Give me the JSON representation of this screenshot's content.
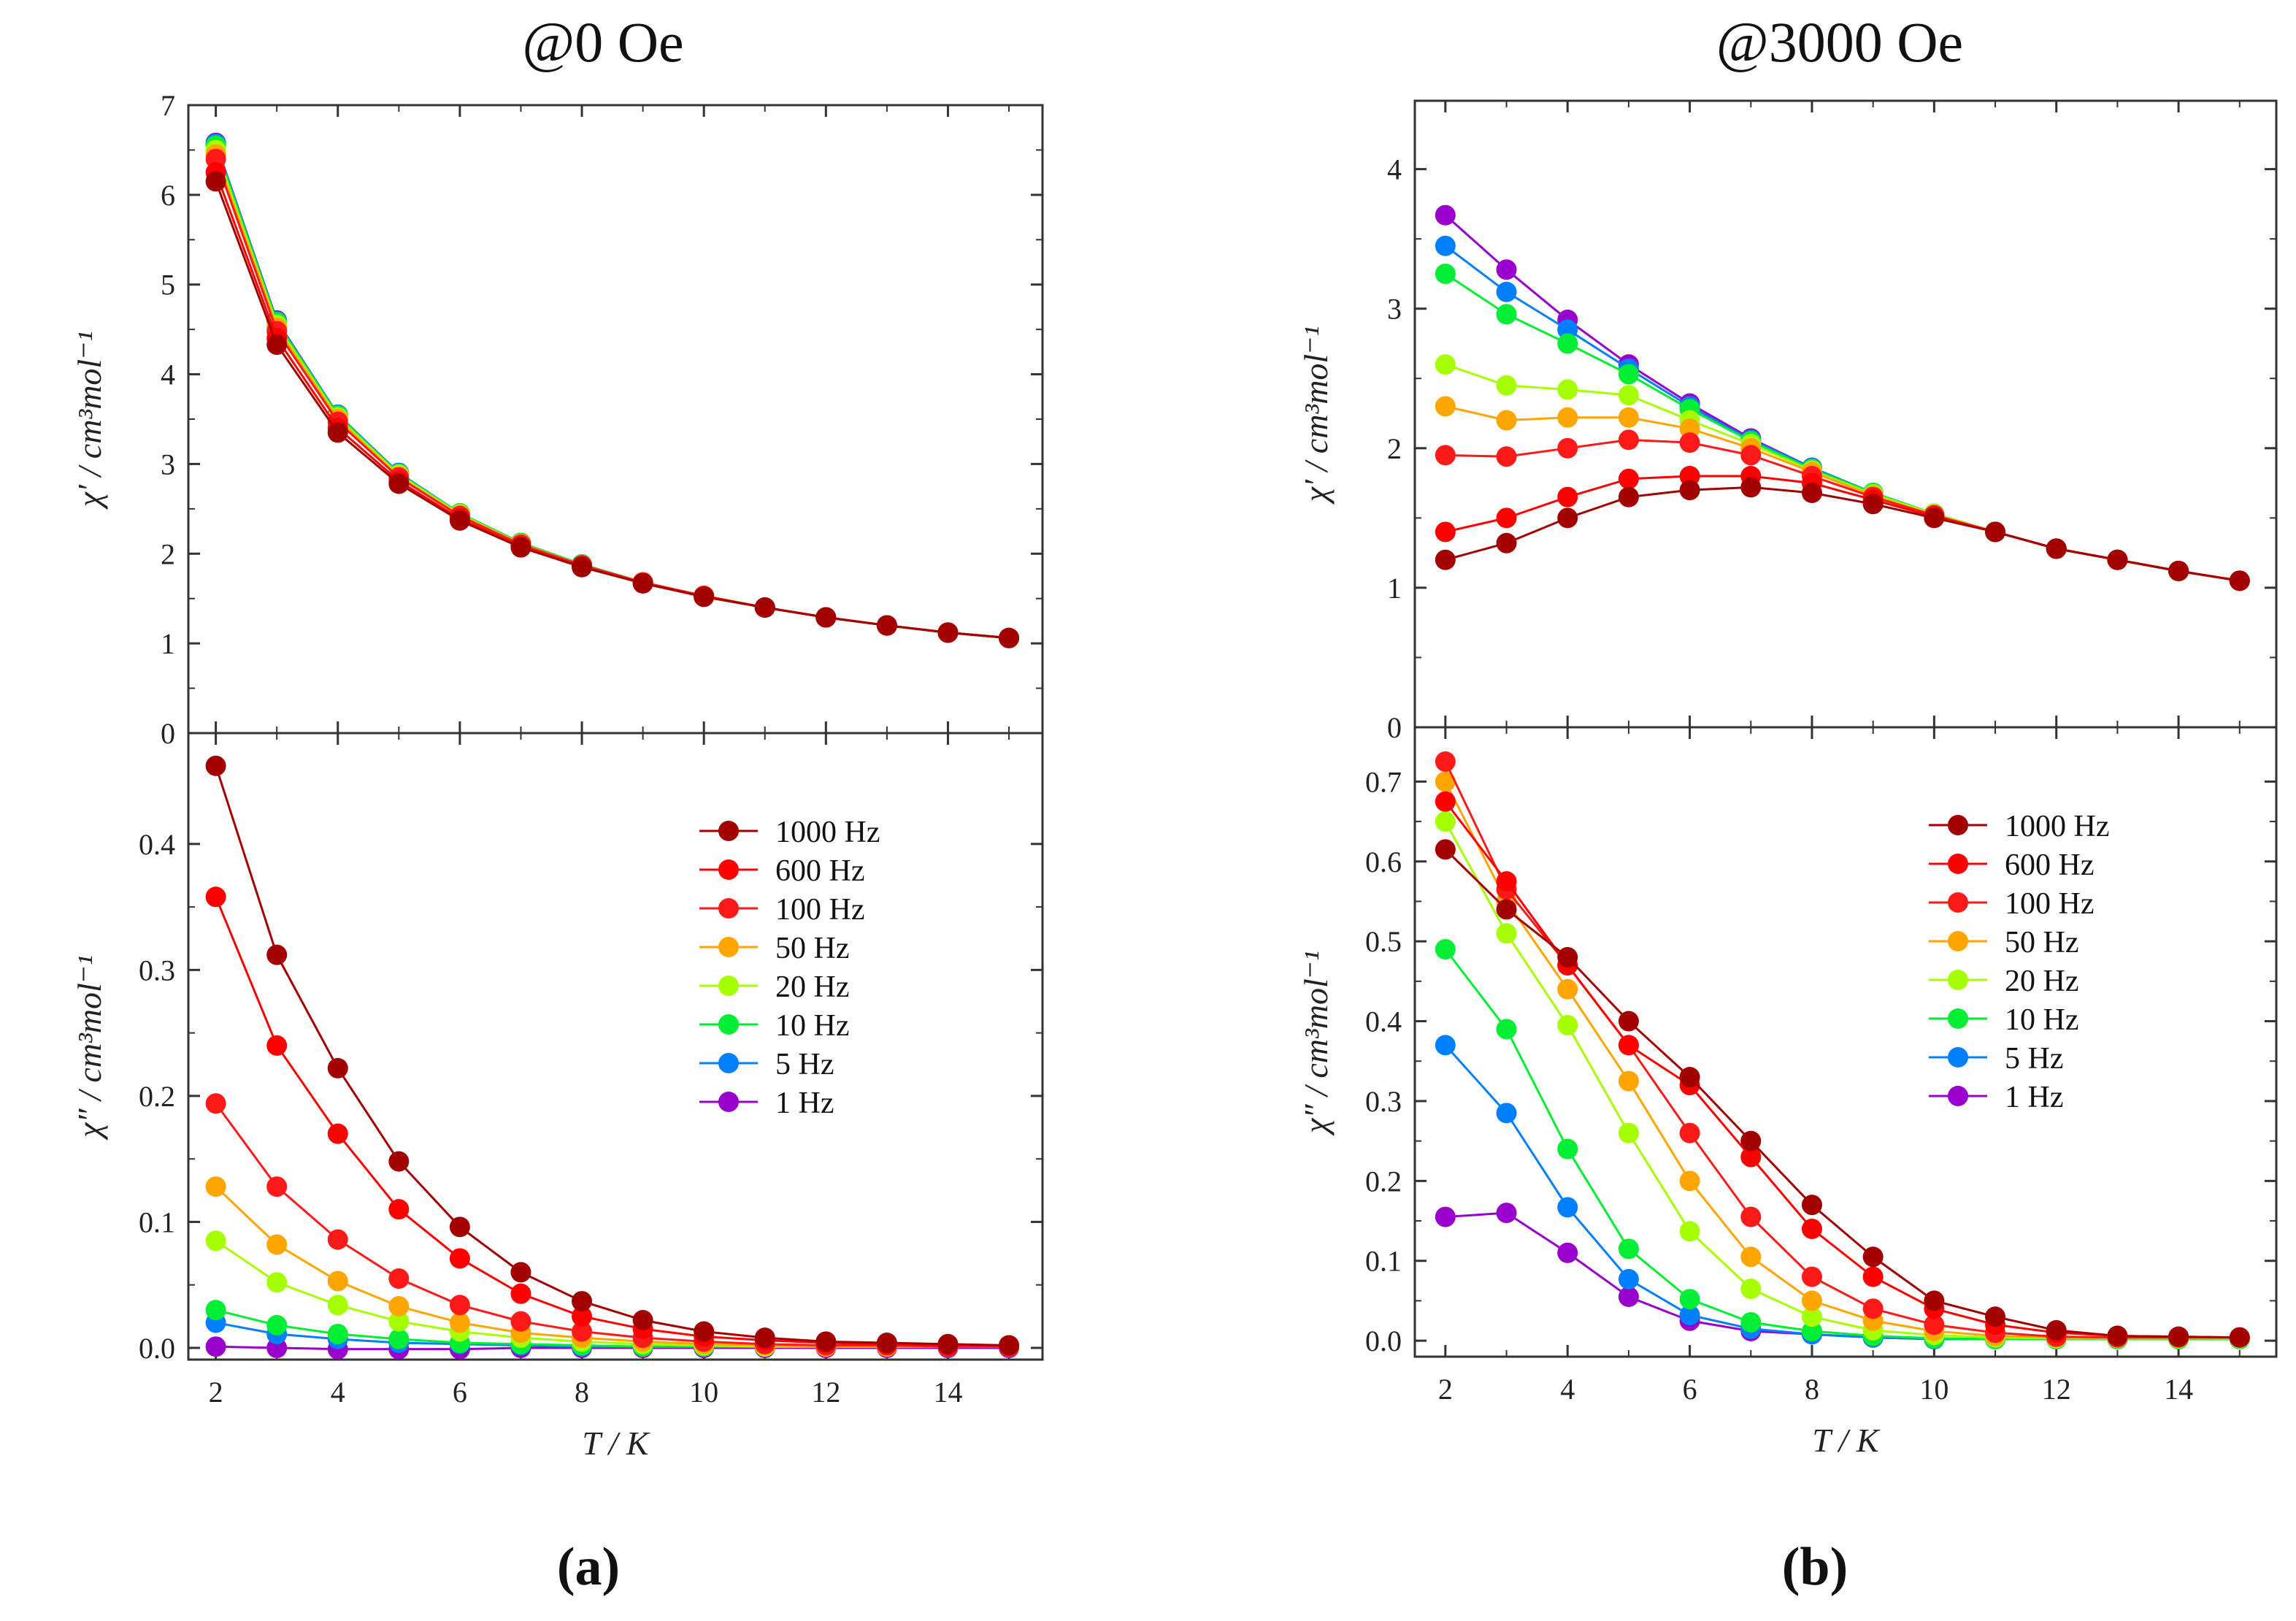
{
  "figure": {
    "title_a": "@0 Oe",
    "title_b": "@3000 Oe",
    "letter_a": "(a)",
    "letter_b": "(b)"
  },
  "series_styles": [
    {
      "name": "1000 Hz",
      "color": "#a30000"
    },
    {
      "name": "600 Hz",
      "color": "#ff0000"
    },
    {
      "name": "100 Hz",
      "color": "#ff1a1a"
    },
    {
      "name": "50 Hz",
      "color": "#ffa500"
    },
    {
      "name": "20 Hz",
      "color": "#a6ff00"
    },
    {
      "name": "10 Hz",
      "color": "#00ee33"
    },
    {
      "name": "5 Hz",
      "color": "#0080ff"
    },
    {
      "name": "1 Hz",
      "color": "#9900cc"
    }
  ],
  "chart_data": [
    {
      "id": "a-real",
      "type": "line",
      "panel": "a",
      "position": "top",
      "xlabel": "",
      "ylabel": "χ′ / cm³mol⁻¹",
      "xlim": [
        1.55,
        15.55
      ],
      "ylim": [
        0,
        7
      ],
      "xticks": [
        2,
        4,
        6,
        8,
        10,
        12,
        14
      ],
      "yticks": [
        0,
        1,
        2,
        3,
        4,
        5,
        6,
        7
      ],
      "x": [
        2,
        3,
        4,
        5,
        6,
        7,
        8,
        9,
        10,
        11,
        12,
        13,
        14,
        15
      ],
      "legend": "none",
      "series": [
        {
          "name": "1000 Hz",
          "values": [
            6.15,
            4.33,
            3.35,
            2.78,
            2.37,
            2.07,
            1.85,
            1.67,
            1.52,
            1.4,
            1.29,
            1.2,
            1.12,
            1.06
          ]
        },
        {
          "name": "600 Hz",
          "values": [
            6.25,
            4.4,
            3.4,
            2.81,
            2.39,
            2.08,
            1.86,
            1.67,
            1.52,
            1.4,
            1.29,
            1.2,
            1.12,
            1.06
          ]
        },
        {
          "name": "100 Hz",
          "values": [
            6.4,
            4.48,
            3.47,
            2.85,
            2.42,
            2.1,
            1.87,
            1.68,
            1.53,
            1.4,
            1.29,
            1.2,
            1.12,
            1.06
          ]
        },
        {
          "name": "50 Hz",
          "values": [
            6.45,
            4.52,
            3.5,
            2.86,
            2.43,
            2.11,
            1.87,
            1.68,
            1.53,
            1.4,
            1.29,
            1.2,
            1.12,
            1.06
          ]
        },
        {
          "name": "20 Hz",
          "values": [
            6.5,
            4.55,
            3.52,
            2.88,
            2.44,
            2.11,
            1.87,
            1.68,
            1.53,
            1.4,
            1.29,
            1.2,
            1.12,
            1.06
          ]
        },
        {
          "name": "10 Hz",
          "values": [
            6.55,
            4.58,
            3.54,
            2.89,
            2.45,
            2.12,
            1.88,
            1.68,
            1.53,
            1.4,
            1.29,
            1.2,
            1.12,
            1.06
          ]
        },
        {
          "name": "5 Hz",
          "values": [
            6.57,
            4.59,
            3.55,
            2.9,
            2.45,
            2.12,
            1.88,
            1.68,
            1.53,
            1.4,
            1.29,
            1.2,
            1.12,
            1.06
          ]
        },
        {
          "name": "1 Hz",
          "values": [
            6.58,
            4.6,
            3.55,
            2.9,
            2.45,
            2.12,
            1.88,
            1.68,
            1.53,
            1.4,
            1.29,
            1.2,
            1.12,
            1.06
          ]
        }
      ]
    },
    {
      "id": "a-imag",
      "type": "line",
      "panel": "a",
      "position": "bottom",
      "xlabel": "T / K",
      "ylabel": "χ″ / cm³mol⁻¹",
      "xlim": [
        1.55,
        15.55
      ],
      "ylim": [
        -0.0093,
        0.488
      ],
      "xticks": [
        2,
        4,
        6,
        8,
        10,
        12,
        14
      ],
      "yticks": [
        0.0,
        0.1,
        0.2,
        0.3,
        0.4
      ],
      "ytick_labels": [
        "0.0",
        "0.1",
        "0.2",
        "0.3",
        "0.4"
      ],
      "x": [
        2,
        3,
        4,
        5,
        6,
        7,
        8,
        9,
        10,
        11,
        12,
        13,
        14,
        15
      ],
      "legend": "upper-right",
      "series": [
        {
          "name": "1000 Hz",
          "values": [
            0.462,
            0.312,
            0.222,
            0.148,
            0.096,
            0.06,
            0.037,
            0.022,
            0.013,
            0.008,
            0.005,
            0.004,
            0.003,
            0.002
          ]
        },
        {
          "name": "600 Hz",
          "values": [
            0.358,
            0.24,
            0.17,
            0.11,
            0.071,
            0.043,
            0.025,
            0.015,
            0.009,
            0.006,
            0.004,
            0.003,
            0.002,
            0.002
          ]
        },
        {
          "name": "100 Hz",
          "values": [
            0.194,
            0.128,
            0.086,
            0.055,
            0.034,
            0.021,
            0.013,
            0.008,
            0.005,
            0.003,
            0.002,
            0.002,
            0.001,
            0.001
          ]
        },
        {
          "name": "50 Hz",
          "values": [
            0.128,
            0.082,
            0.053,
            0.033,
            0.02,
            0.012,
            0.008,
            0.005,
            0.003,
            0.002,
            0.001,
            0.001,
            0.001,
            0.001
          ]
        },
        {
          "name": "20 Hz",
          "values": [
            0.085,
            0.052,
            0.034,
            0.021,
            0.013,
            0.008,
            0.005,
            0.003,
            0.002,
            0.001,
            0.001,
            0.001,
            0.001,
            0.001
          ]
        },
        {
          "name": "10 Hz",
          "values": [
            0.03,
            0.018,
            0.011,
            0.007,
            0.004,
            0.003,
            0.002,
            0.001,
            0.001,
            0.001,
            0.001,
            0.001,
            0.001,
            0.001
          ]
        },
        {
          "name": "5 Hz",
          "values": [
            0.02,
            0.011,
            0.007,
            0.004,
            0.003,
            0.002,
            0.001,
            0.001,
            0.001,
            0.001,
            0.001,
            0.001,
            0.001,
            0.001
          ]
        },
        {
          "name": "1 Hz",
          "values": [
            0.001,
            0.0,
            -0.001,
            -0.001,
            -0.001,
            0.0,
            0.0,
            0.0,
            0.0,
            0.0,
            0.0,
            0.0,
            0.0,
            0.0
          ]
        }
      ]
    },
    {
      "id": "b-real",
      "type": "line",
      "panel": "b",
      "position": "top",
      "xlabel": "",
      "ylabel": "χ′ / cm³mol⁻¹",
      "xlim": [
        1.5,
        15.6
      ],
      "ylim": [
        0,
        4.49
      ],
      "xticks": [
        2,
        4,
        6,
        8,
        10,
        12,
        14
      ],
      "yticks": [
        0,
        1,
        2,
        3,
        4
      ],
      "x": [
        2,
        3,
        4,
        5,
        6,
        7,
        8,
        9,
        10,
        11,
        12,
        13,
        14,
        15
      ],
      "legend": "none",
      "series": [
        {
          "name": "1000 Hz",
          "values": [
            1.2,
            1.32,
            1.5,
            1.65,
            1.7,
            1.72,
            1.68,
            1.6,
            1.5,
            1.4,
            1.28,
            1.2,
            1.12,
            1.05
          ]
        },
        {
          "name": "600 Hz",
          "values": [
            1.4,
            1.5,
            1.65,
            1.78,
            1.8,
            1.8,
            1.75,
            1.63,
            1.51,
            1.4,
            1.28,
            1.2,
            1.12,
            1.05
          ]
        },
        {
          "name": "100 Hz",
          "values": [
            1.95,
            1.94,
            2.0,
            2.06,
            2.04,
            1.95,
            1.8,
            1.65,
            1.52,
            1.4,
            1.28,
            1.2,
            1.12,
            1.05
          ]
        },
        {
          "name": "50 Hz",
          "values": [
            2.3,
            2.2,
            2.22,
            2.22,
            2.14,
            2.0,
            1.83,
            1.66,
            1.52,
            1.4,
            1.28,
            1.2,
            1.12,
            1.05
          ]
        },
        {
          "name": "20 Hz",
          "values": [
            2.6,
            2.45,
            2.42,
            2.38,
            2.2,
            2.03,
            1.84,
            1.67,
            1.53,
            1.4,
            1.28,
            1.2,
            1.12,
            1.05
          ]
        },
        {
          "name": "10 Hz",
          "values": [
            3.25,
            2.96,
            2.75,
            2.53,
            2.28,
            2.05,
            1.85,
            1.68,
            1.53,
            1.4,
            1.28,
            1.2,
            1.12,
            1.05
          ]
        },
        {
          "name": "5 Hz",
          "values": [
            3.45,
            3.12,
            2.85,
            2.57,
            2.3,
            2.06,
            1.86,
            1.68,
            1.53,
            1.4,
            1.28,
            1.2,
            1.12,
            1.05
          ]
        },
        {
          "name": "1 Hz",
          "values": [
            3.67,
            3.28,
            2.92,
            2.6,
            2.32,
            2.07,
            1.86,
            1.68,
            1.53,
            1.4,
            1.28,
            1.2,
            1.12,
            1.05
          ]
        }
      ]
    },
    {
      "id": "b-imag",
      "type": "line",
      "panel": "b",
      "position": "bottom",
      "xlabel": "T / K",
      "ylabel": "χ″ / cm³mol⁻¹",
      "xlim": [
        1.5,
        15.6
      ],
      "ylim": [
        -0.02,
        0.768
      ],
      "xticks": [
        2,
        4,
        6,
        8,
        10,
        12,
        14
      ],
      "yticks": [
        0.0,
        0.1,
        0.2,
        0.3,
        0.4,
        0.5,
        0.6,
        0.7
      ],
      "ytick_labels": [
        "0.0",
        "0.1",
        "0.2",
        "0.3",
        "0.4",
        "0.5",
        "0.6",
        "0.7"
      ],
      "x": [
        2,
        3,
        4,
        5,
        6,
        7,
        8,
        9,
        10,
        11,
        12,
        13,
        14,
        15
      ],
      "legend": "upper-right",
      "series": [
        {
          "name": "1000 Hz",
          "values": [
            0.615,
            0.54,
            0.48,
            0.4,
            0.33,
            0.25,
            0.17,
            0.105,
            0.05,
            0.03,
            0.013,
            0.006,
            0.005,
            0.004
          ]
        },
        {
          "name": "600 Hz",
          "values": [
            0.675,
            0.575,
            0.47,
            0.37,
            0.32,
            0.23,
            0.14,
            0.08,
            0.04,
            0.02,
            0.01,
            0.006,
            0.005,
            0.004
          ]
        },
        {
          "name": "100 Hz",
          "values": [
            0.725,
            0.565,
            0.47,
            0.37,
            0.26,
            0.155,
            0.08,
            0.04,
            0.02,
            0.01,
            0.005,
            0.004,
            0.004,
            0.004
          ]
        },
        {
          "name": "50 Hz",
          "values": [
            0.7,
            0.55,
            0.44,
            0.325,
            0.2,
            0.105,
            0.05,
            0.025,
            0.012,
            0.006,
            0.004,
            0.004,
            0.004,
            0.004
          ]
        },
        {
          "name": "20 Hz",
          "values": [
            0.65,
            0.51,
            0.395,
            0.26,
            0.137,
            0.065,
            0.03,
            0.013,
            0.007,
            0.004,
            0.003,
            0.003,
            0.003,
            0.003
          ]
        },
        {
          "name": "10 Hz",
          "values": [
            0.49,
            0.39,
            0.24,
            0.115,
            0.052,
            0.023,
            0.012,
            0.006,
            0.003,
            0.002,
            0.002,
            0.002,
            0.002,
            0.002
          ]
        },
        {
          "name": "5 Hz",
          "values": [
            0.37,
            0.285,
            0.167,
            0.077,
            0.032,
            0.015,
            0.008,
            0.004,
            0.002,
            0.002,
            0.002,
            0.002,
            0.002,
            0.002
          ]
        },
        {
          "name": "1 Hz",
          "values": [
            0.155,
            0.16,
            0.11,
            0.055,
            0.025,
            0.012,
            0.008,
            0.004,
            0.002,
            0.002,
            0.002,
            0.002,
            0.002,
            0.002
          ]
        }
      ]
    }
  ]
}
